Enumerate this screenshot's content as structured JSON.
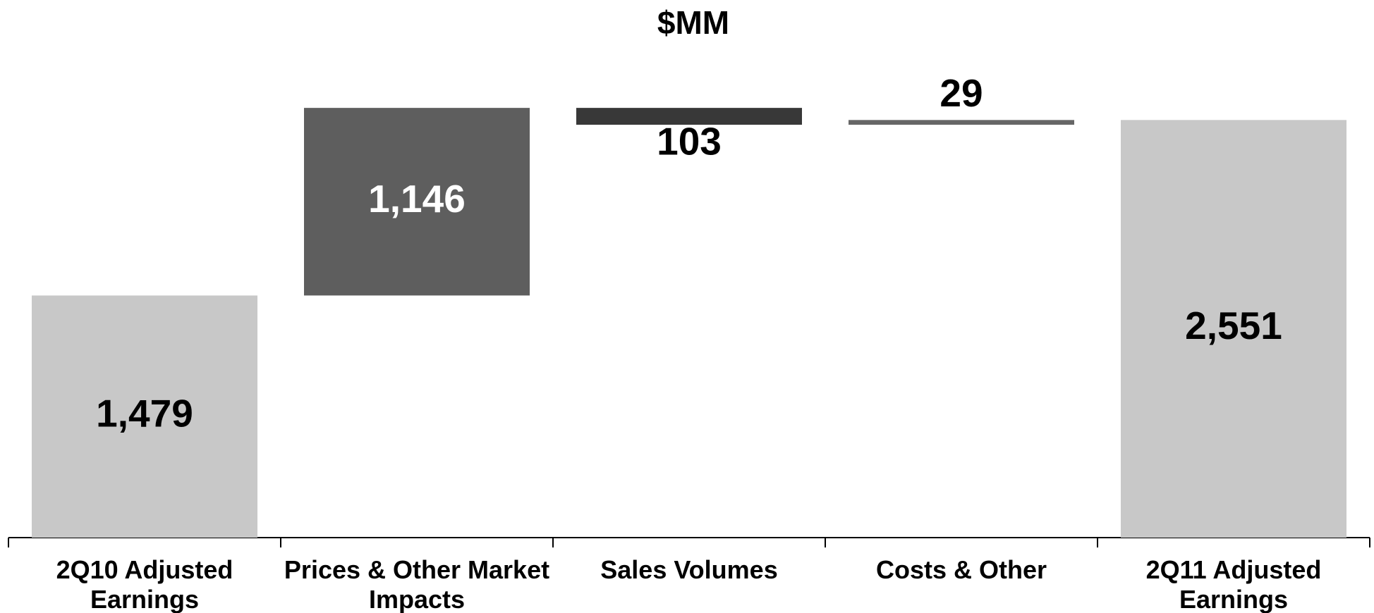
{
  "chart_data": {
    "type": "waterfall",
    "title": "$MM",
    "categories": [
      "2Q10 Adjusted Earnings",
      "Prices & Other Market Impacts",
      "Sales Volumes",
      "Costs & Other",
      "2Q11 Adjusted Earnings"
    ],
    "measure": [
      "total",
      "relative",
      "relative",
      "relative",
      "total"
    ],
    "values": [
      1479,
      1146,
      -103,
      29,
      2551
    ],
    "value_labels": [
      "1,479",
      "1,146",
      "103",
      "29",
      "2,551"
    ],
    "colors": [
      "#c8c8c8",
      "#5e5e5e",
      "#383838",
      "#666666",
      "#c8c8c8"
    ],
    "ylim": [
      0,
      3000
    ]
  }
}
